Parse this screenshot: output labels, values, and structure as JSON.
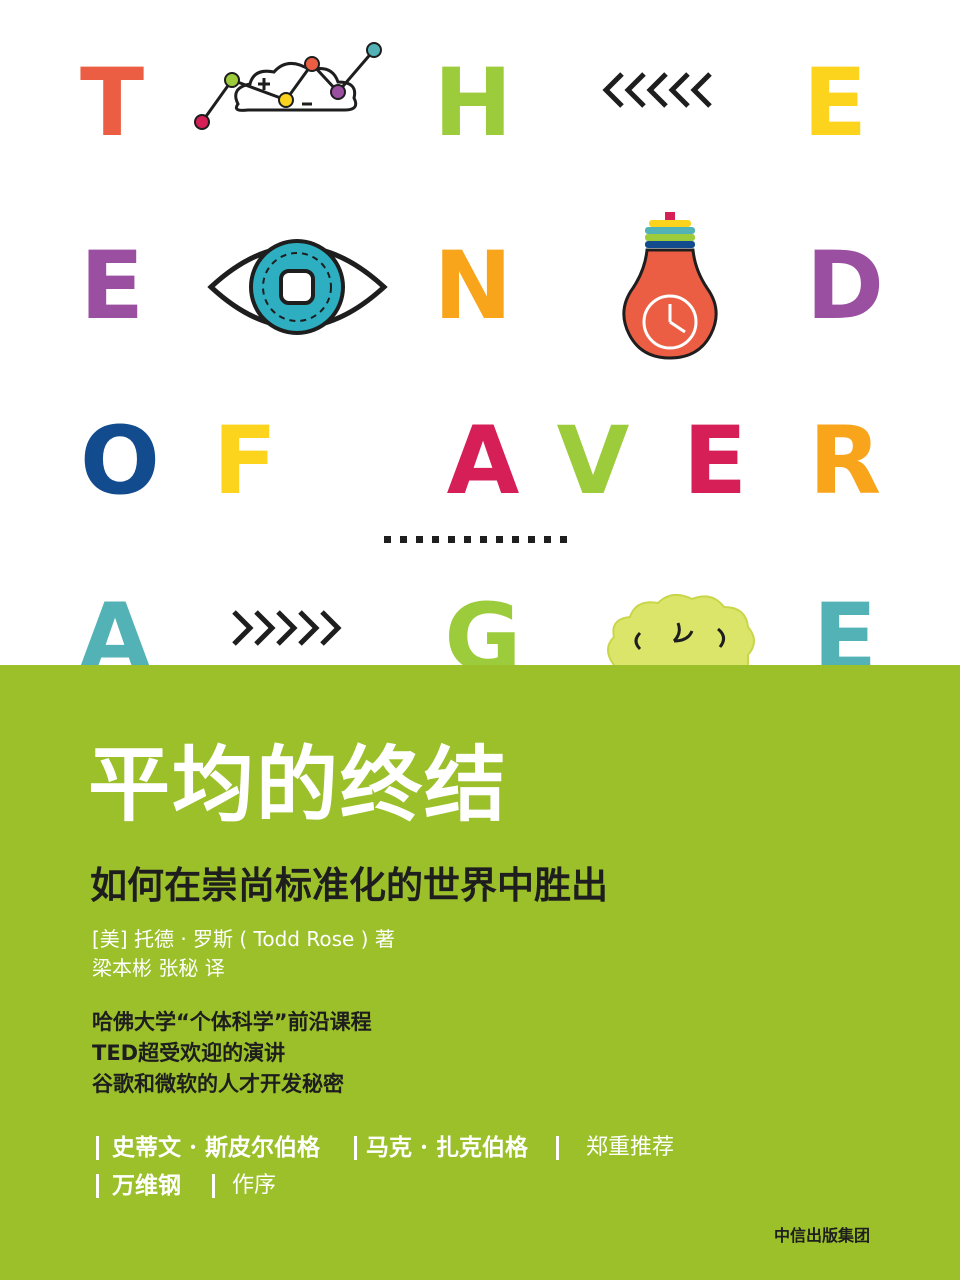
{
  "cover_letters": {
    "row1": [
      "T",
      "H",
      "E"
    ],
    "row2": [
      "E",
      "N",
      "D"
    ],
    "row3": [
      "O",
      "F",
      "A",
      "V",
      "E",
      "R"
    ],
    "row4": [
      "A",
      "G",
      "E"
    ]
  },
  "colors": {
    "green_band": "#9bc02a",
    "red": "#ec5e43",
    "lime": "#9ccb3b",
    "yellow": "#fcd31d",
    "purple": "#9b4fa1",
    "orange": "#f8a51b",
    "navy": "#134c8e",
    "magenta": "#d61e57",
    "teal": "#52b2b6"
  },
  "icons": [
    "cloud-network-icon",
    "chevrons-left-icon",
    "eye-icon",
    "lightbulb-clock-icon",
    "dotted-line-icon",
    "chevrons-right-icon",
    "brain-icon"
  ],
  "title": "平均的终结",
  "subtitle": "如何在崇尚标准化的世界中胜出",
  "author_line": "[美] 托德 · 罗斯 ( Todd Rose ) 著",
  "translator_line": "梁本彬  张秘  译",
  "taglines": [
    "哈佛大学“个体科学”前沿课程",
    "TED超受欢迎的演讲",
    "谷歌和微软的人才开发秘密"
  ],
  "recommenders": {
    "first": "史蒂文 · 斯皮尔伯格",
    "second": "马克 · 扎克伯格",
    "recommend_label": "郑重推荐",
    "preface_author": "万维钢",
    "preface_label": "作序"
  },
  "publisher": "中信出版集团"
}
